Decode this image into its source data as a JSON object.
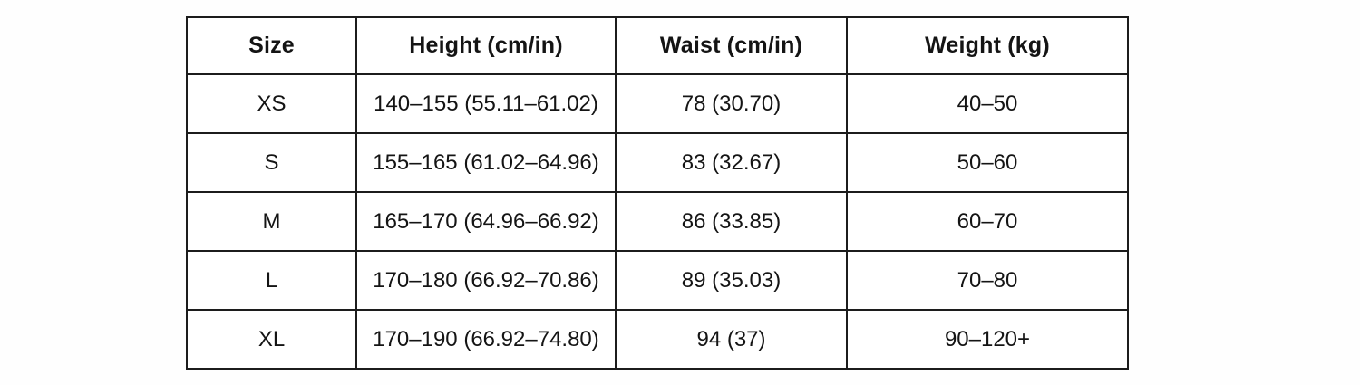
{
  "chart_data": {
    "type": "table",
    "title": "",
    "columns": [
      "Size",
      "Height (cm/in)",
      "Waist (cm/in)",
      "Weight (kg)"
    ],
    "rows": [
      [
        "XS",
        "140–155 (55.11–61.02)",
        "78 (30.70)",
        "40–50"
      ],
      [
        "S",
        "155–165 (61.02–64.96)",
        "83 (32.67)",
        "50–60"
      ],
      [
        "M",
        "165–170 (64.96–66.92)",
        "86 (33.85)",
        "60–70"
      ],
      [
        "L",
        "170–180 (66.92–70.86)",
        "89 (35.03)",
        "70–80"
      ],
      [
        "XL",
        "170–190 (66.92–74.80)",
        "94 (37)",
        "90–120+"
      ]
    ],
    "grid": true,
    "layout": {
      "legend": "none",
      "border_color": "#1c1c1c",
      "text_color": "#141414",
      "background": "#ffffff"
    }
  }
}
